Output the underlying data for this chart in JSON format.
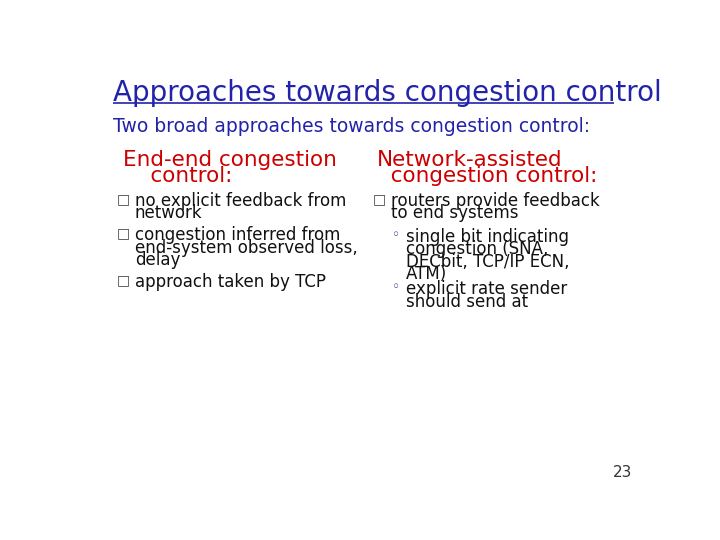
{
  "title": "Approaches towards congestion control",
  "title_color": "#2222AA",
  "subtitle": "Two broad approaches towards congestion control:",
  "subtitle_color": "#2222AA",
  "background_color": "#FFFFFF",
  "left_header_line1": "End-end congestion",
  "left_header_line2": "    control:",
  "right_header_line1": "Network-assisted",
  "right_header_line2": "  congestion control:",
  "header_color": "#CC0000",
  "left_bullets": [
    "no explicit feedback from\nnetwork",
    "congestion inferred from\nend-system observed loss,\ndelay",
    "approach taken by TCP"
  ],
  "right_bullet": "routers provide feedback\nto end systems",
  "right_sub_bullets": [
    "single bit indicating\ncongestion (SNA,\nDECbit, TCP/IP ECN,\nATM)",
    "explicit rate sender\nshould send at"
  ],
  "bullet_color": "#111111",
  "sub_bullet_color": "#111111",
  "page_number": "23",
  "title_fontsize": 20,
  "subtitle_fontsize": 13.5,
  "header_fontsize": 15.5,
  "bullet_fontsize": 12,
  "sub_bullet_fontsize": 12,
  "page_fontsize": 11
}
